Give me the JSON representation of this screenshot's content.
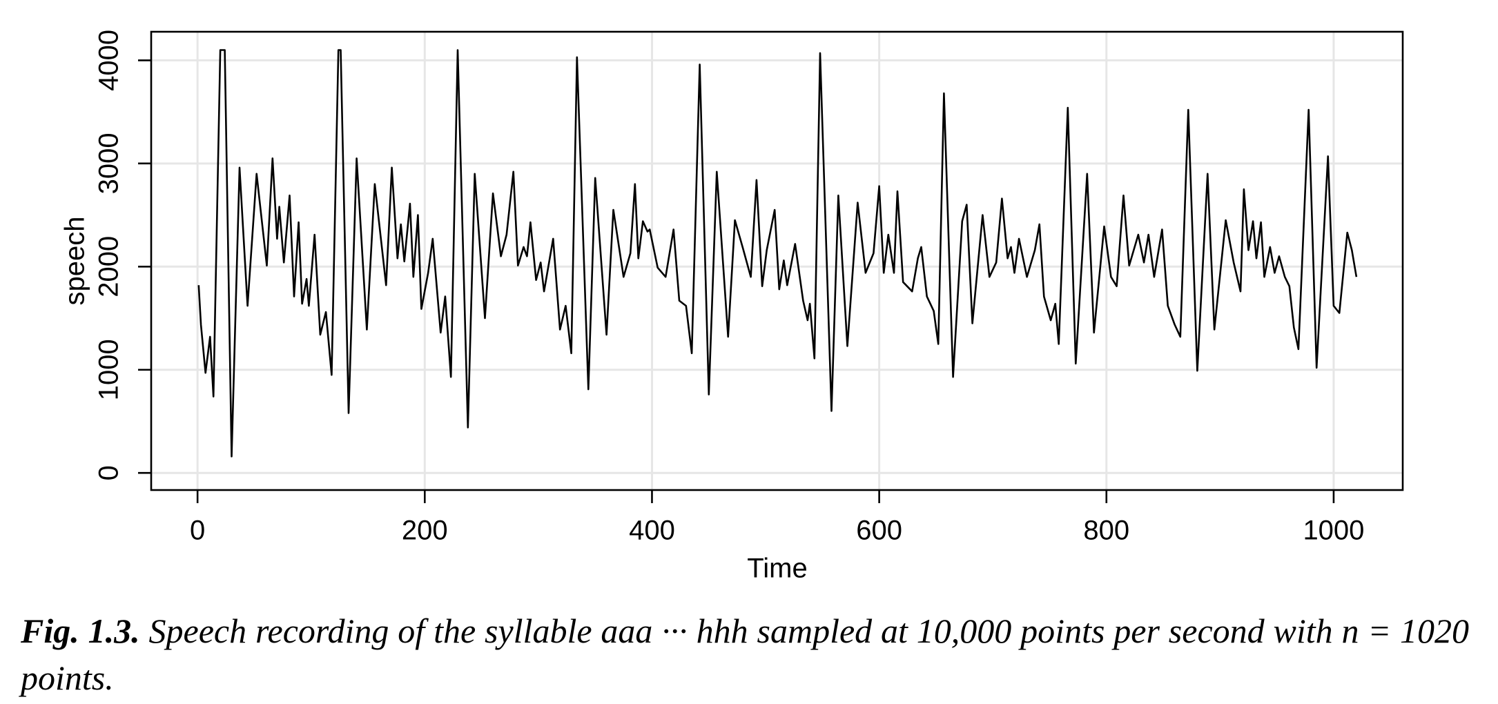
{
  "chart_data": {
    "type": "line",
    "x_label": "Time",
    "y_label": "speech",
    "caption": {
      "label": "Fig. 1.3.",
      "text": "Speech recording of the syllable aaa ··· hhh sampled at 10,000 points per second with n = 1020 points."
    },
    "xlim": [
      -40.8,
      1060.8
    ],
    "ylim": [
      -166,
      4277
    ],
    "xticks": [
      0,
      200,
      400,
      600,
      800,
      1000
    ],
    "yticks": [
      0,
      1000,
      2000,
      3000,
      4000
    ],
    "grid": true,
    "color": "#000000",
    "x": [
      1,
      3,
      7,
      11,
      14,
      20,
      24,
      30,
      37,
      44,
      52,
      61,
      66,
      70,
      72,
      76,
      81,
      85,
      89,
      92,
      96,
      98,
      103,
      108,
      113,
      118,
      124,
      126,
      133,
      140,
      149,
      156,
      166,
      171,
      176,
      179,
      182,
      187,
      190,
      194,
      197,
      203,
      207,
      214,
      218,
      223,
      229,
      238,
      244,
      253,
      260,
      267,
      272,
      278,
      282,
      287,
      290,
      293,
      298,
      302,
      305,
      313,
      319,
      324,
      329,
      334,
      344,
      350,
      360,
      366,
      375,
      381,
      385,
      388,
      392,
      396,
      398,
      405,
      412,
      419,
      424,
      430,
      435,
      442,
      450,
      457,
      467,
      473,
      480,
      487,
      492,
      497,
      501,
      508,
      512,
      516,
      519,
      526,
      533,
      537,
      539,
      543,
      548,
      558,
      564,
      572,
      581,
      588,
      595,
      600,
      604,
      608,
      613,
      616,
      621,
      629,
      634,
      637,
      642,
      648,
      652,
      657,
      665,
      673,
      677,
      682,
      691,
      697,
      703,
      708,
      713,
      716,
      719,
      723,
      730,
      737,
      741,
      745,
      751,
      755,
      758,
      766,
      773,
      783,
      789,
      798,
      804,
      809,
      815,
      820,
      828,
      833,
      837,
      842,
      849,
      854,
      860,
      865,
      872,
      880,
      889,
      895,
      905,
      912,
      918,
      921,
      925,
      929,
      932,
      936,
      939,
      944,
      948,
      952,
      957,
      961,
      965,
      969,
      978,
      985,
      995,
      1000,
      1005,
      1012,
      1016,
      1020
    ],
    "values": [
      1820,
      1435,
      970,
      1320,
      740,
      4100,
      4100,
      160,
      2960,
      1620,
      2900,
      2010,
      3050,
      2270,
      2580,
      2040,
      2690,
      1710,
      2430,
      1640,
      1880,
      1620,
      2310,
      1340,
      1560,
      950,
      4100,
      4100,
      580,
      3050,
      1390,
      2800,
      1820,
      2960,
      2080,
      2410,
      2050,
      2610,
      1900,
      2500,
      1590,
      1940,
      2270,
      1360,
      1710,
      930,
      4100,
      440,
      2900,
      1500,
      2710,
      2100,
      2310,
      2920,
      2010,
      2190,
      2100,
      2430,
      1870,
      2040,
      1760,
      2270,
      1390,
      1620,
      1160,
      4030,
      810,
      2860,
      1340,
      2550,
      1900,
      2130,
      2800,
      2080,
      2440,
      2340,
      2360,
      1990,
      1900,
      2360,
      1670,
      1620,
      1160,
      3960,
      760,
      2920,
      1320,
      2450,
      2180,
      1900,
      2840,
      1810,
      2160,
      2550,
      1780,
      2060,
      1820,
      2220,
      1670,
      1480,
      1640,
      1110,
      4070,
      600,
      2690,
      1230,
      2620,
      1940,
      2130,
      2780,
      1940,
      2310,
      1940,
      2730,
      1850,
      1760,
      2080,
      2190,
      1710,
      1570,
      1250,
      3680,
      930,
      2440,
      2600,
      1450,
      2500,
      1900,
      2040,
      2660,
      2080,
      2190,
      1940,
      2270,
      1900,
      2160,
      2410,
      1710,
      1480,
      1640,
      1250,
      3540,
      1060,
      2900,
      1360,
      2390,
      1900,
      1810,
      2690,
      2010,
      2310,
      2040,
      2310,
      1900,
      2360,
      1620,
      1440,
      1320,
      3520,
      990,
      2900,
      1390,
      2450,
      2040,
      1760,
      2750,
      2160,
      2440,
      2080,
      2430,
      1900,
      2190,
      1940,
      2100,
      1900,
      1810,
      1410,
      1200,
      3520,
      1020,
      3070,
      1620,
      1550,
      2330,
      2160,
      1900
    ]
  }
}
